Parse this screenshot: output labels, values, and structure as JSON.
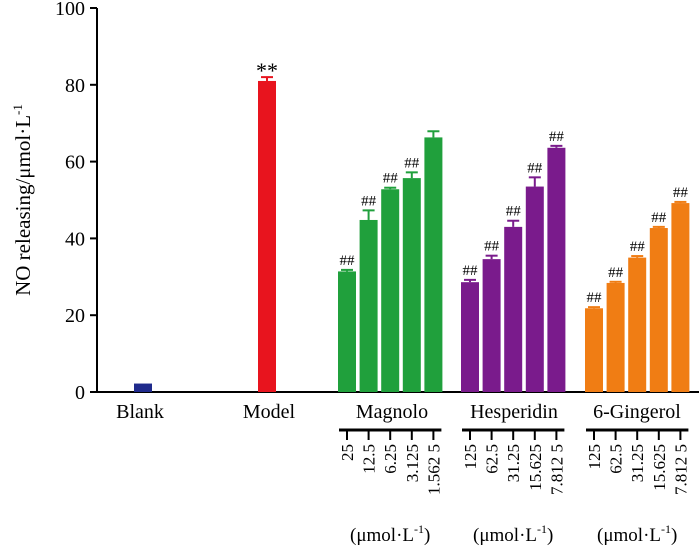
{
  "chart_data": {
    "type": "bar",
    "title": "",
    "xlabel": "",
    "ylabel_prefix": "NO releasing/μmol·L",
    "ylabel_sup": "-1",
    "ylim": [
      0,
      100
    ],
    "yticks": [
      0,
      20,
      40,
      60,
      80,
      100
    ],
    "unit_prefix": "(μmol·L",
    "unit_sup": "-1",
    "unit_suffix": ")",
    "groups": [
      {
        "name": "Blank",
        "color": "#1f2a8c",
        "bars": [
          {
            "value": 2.2,
            "error": 0,
            "sig": ""
          }
        ],
        "doses": []
      },
      {
        "name": "Model",
        "color": "#e8141e",
        "bars": [
          {
            "value": 81.0,
            "error": 1.0,
            "sig": "**"
          }
        ],
        "doses": []
      },
      {
        "name": "Magnolo",
        "color": "#20a03c",
        "bars": [
          {
            "value": 31.4,
            "error": 0.4,
            "sig": "##"
          },
          {
            "value": 44.8,
            "error": 2.5,
            "sig": "##"
          },
          {
            "value": 52.8,
            "error": 0.4,
            "sig": "##"
          },
          {
            "value": 55.7,
            "error": 1.5,
            "sig": "##"
          },
          {
            "value": 66.3,
            "error": 1.6,
            "sig": ""
          }
        ],
        "doses": [
          "25",
          "12.5",
          "6.25",
          "3.125",
          "1.562 5"
        ],
        "show_unit": true
      },
      {
        "name": "Hesperidin",
        "color": "#7a1b8c",
        "bars": [
          {
            "value": 28.6,
            "error": 0.6,
            "sig": "##"
          },
          {
            "value": 34.6,
            "error": 0.9,
            "sig": "##"
          },
          {
            "value": 43.0,
            "error": 1.6,
            "sig": "##"
          },
          {
            "value": 53.5,
            "error": 2.4,
            "sig": "##"
          },
          {
            "value": 63.6,
            "error": 0.5,
            "sig": "##"
          }
        ],
        "doses": [
          "125",
          "62.5",
          "31.25",
          "15.625",
          "7.812 5"
        ],
        "show_unit": true
      },
      {
        "name": "6-Gingerol",
        "color": "#f07d14",
        "bars": [
          {
            "value": 21.8,
            "error": 0.3,
            "sig": "##"
          },
          {
            "value": 28.4,
            "error": 0.3,
            "sig": "##"
          },
          {
            "value": 35.0,
            "error": 0.4,
            "sig": "##"
          },
          {
            "value": 42.7,
            "error": 0.3,
            "sig": "##"
          },
          {
            "value": 49.2,
            "error": 0.3,
            "sig": "##"
          }
        ],
        "doses": [
          "125",
          "62.5",
          "31.25",
          "15.625",
          "7.812 5"
        ],
        "show_unit": true
      }
    ]
  }
}
